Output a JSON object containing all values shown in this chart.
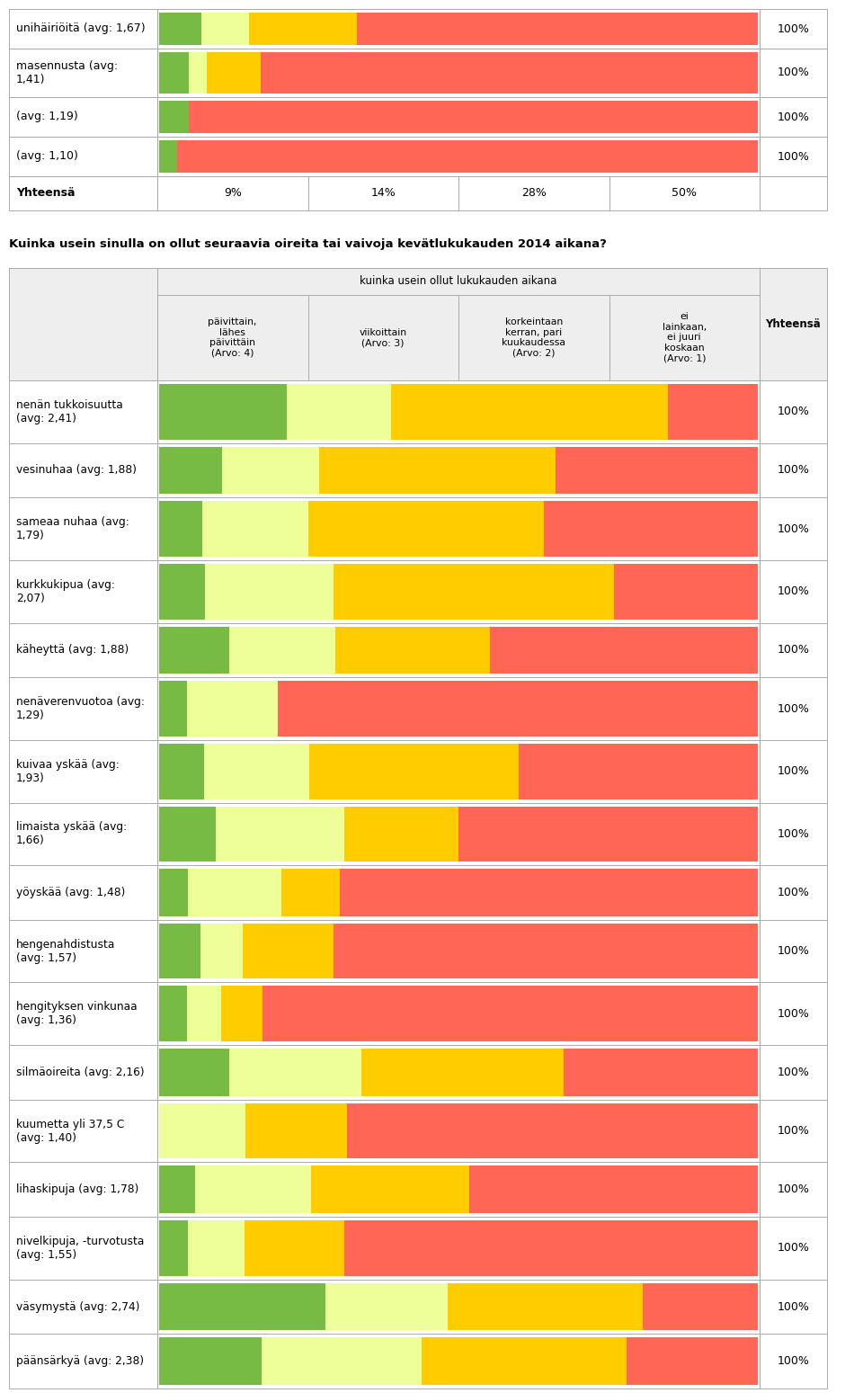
{
  "title_question": "Kuinka usein sinulla on ollut seuraavia oireita tai vaivoja kevätlukukauden 2014 aikana?",
  "header_group_text": "kuinka usein ollut lukukauden aikana",
  "col_headers": [
    "päivittain,\nlähes\npäivittäin\n(Arvo: 4)",
    "viikoittain\n(Arvo: 3)",
    "korkeintaan\nkerran, pari\nkuukaudessa\n(Arvo: 2)",
    "ei\nlainkaan,\nei juuri\nkoskaan\n(Arvo: 1)"
  ],
  "yhteensa_label": "Yhteensä",
  "colors": {
    "green": "#77bb44",
    "light_yellow": "#eeff99",
    "orange": "#ffcc00",
    "red": "#ff6655",
    "bg_gray": "#eeeeee",
    "border": "#aaaaaa",
    "white": "#ffffff"
  },
  "top_rows": [
    {
      "label": "unihäiriöitä (avg: 1,67)",
      "segs": [
        0.07,
        0.08,
        0.18,
        0.67
      ]
    },
    {
      "label": "masennusta (avg:\n1,41)",
      "segs": [
        0.05,
        0.03,
        0.09,
        0.83
      ]
    },
    {
      "label": "(avg: 1,19)",
      "segs": [
        0.05,
        0.0,
        0.0,
        0.95
      ]
    },
    {
      "label": "(avg: 1,10)",
      "segs": [
        0.03,
        0.0,
        0.0,
        0.97
      ]
    }
  ],
  "yhteensa_vals": [
    "9%",
    "14%",
    "28%",
    "50%"
  ],
  "main_rows": [
    {
      "label": "nenän tukkoisuutta\n(avg: 2,41)",
      "segs": [
        0.17,
        0.14,
        0.37,
        0.12
      ]
    },
    {
      "label": "vesinuhaa (avg: 1,88)",
      "segs": [
        0.09,
        0.14,
        0.34,
        0.29
      ]
    },
    {
      "label": "sameaa nuhaa (avg:\n1,79)",
      "segs": [
        0.06,
        0.15,
        0.33,
        0.3
      ]
    },
    {
      "label": "kurkkukipua (avg:\n2,07)",
      "segs": [
        0.06,
        0.17,
        0.37,
        0.19
      ]
    },
    {
      "label": "käheyttä (avg: 1,88)",
      "segs": [
        0.1,
        0.15,
        0.22,
        0.38
      ]
    },
    {
      "label": "nenäverenvuotoa (avg:\n1,29)",
      "segs": [
        0.04,
        0.13,
        0.0,
        0.69
      ]
    },
    {
      "label": "kuivaa yskää (avg:\n1,93)",
      "segs": [
        0.06,
        0.14,
        0.28,
        0.32
      ]
    },
    {
      "label": "limaista yskää (avg:\n1,66)",
      "segs": [
        0.08,
        0.18,
        0.16,
        0.42
      ]
    },
    {
      "label": "yöyskää (avg: 1,48)",
      "segs": [
        0.04,
        0.13,
        0.08,
        0.58
      ]
    },
    {
      "label": "hengenahdistusta\n(avg: 1,57)",
      "segs": [
        0.06,
        0.06,
        0.13,
        0.61
      ]
    },
    {
      "label": "hengityksen vinkunaa\n(avg: 1,36)",
      "segs": [
        0.04,
        0.05,
        0.06,
        0.72
      ]
    },
    {
      "label": "silmäoireita (avg: 2,16)",
      "segs": [
        0.09,
        0.17,
        0.26,
        0.25
      ]
    },
    {
      "label": "kuumetta yli 37,5 C\n(avg: 1,40)",
      "segs": [
        0.0,
        0.12,
        0.14,
        0.57
      ]
    },
    {
      "label": "lihaskipuja (avg: 1,78)",
      "segs": [
        0.05,
        0.16,
        0.22,
        0.4
      ]
    },
    {
      "label": "nivelkipuja, -turvotusta\n(avg: 1,55)",
      "segs": [
        0.04,
        0.08,
        0.14,
        0.58
      ]
    },
    {
      "label": "väsymystä (avg: 2,74)",
      "segs": [
        0.23,
        0.17,
        0.27,
        0.16
      ]
    },
    {
      "label": "päänsärkyä (avg: 2,38)",
      "segs": [
        0.14,
        0.22,
        0.28,
        0.18
      ]
    }
  ]
}
